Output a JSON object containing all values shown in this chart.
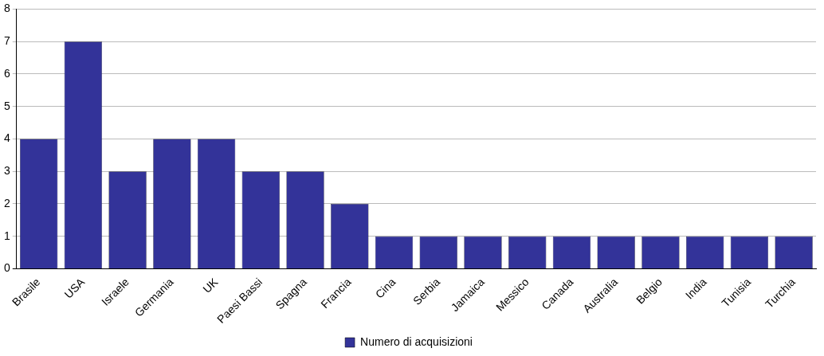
{
  "chart_data": {
    "type": "bar",
    "categories": [
      "Brasile",
      "USA",
      "Israele",
      "Germania",
      "UK",
      "Paesi Bassi",
      "Spagna",
      "Francia",
      "Cina",
      "Serbia",
      "Jamaica",
      "Messico",
      "Canada",
      "Australia",
      "Belgio",
      "India",
      "Tunisia",
      "Turchia"
    ],
    "series": [
      {
        "name": "Numero di acquisizioni",
        "color": "#333399",
        "values": [
          4,
          7,
          3,
          4,
          4,
          3,
          3,
          2,
          1,
          1,
          1,
          1,
          1,
          1,
          1,
          1,
          1,
          1
        ]
      }
    ],
    "ylim": [
      0,
      8
    ],
    "yticks": [
      0,
      1,
      2,
      3,
      4,
      5,
      6,
      7,
      8
    ],
    "grid": "y",
    "legend": "bottom"
  }
}
